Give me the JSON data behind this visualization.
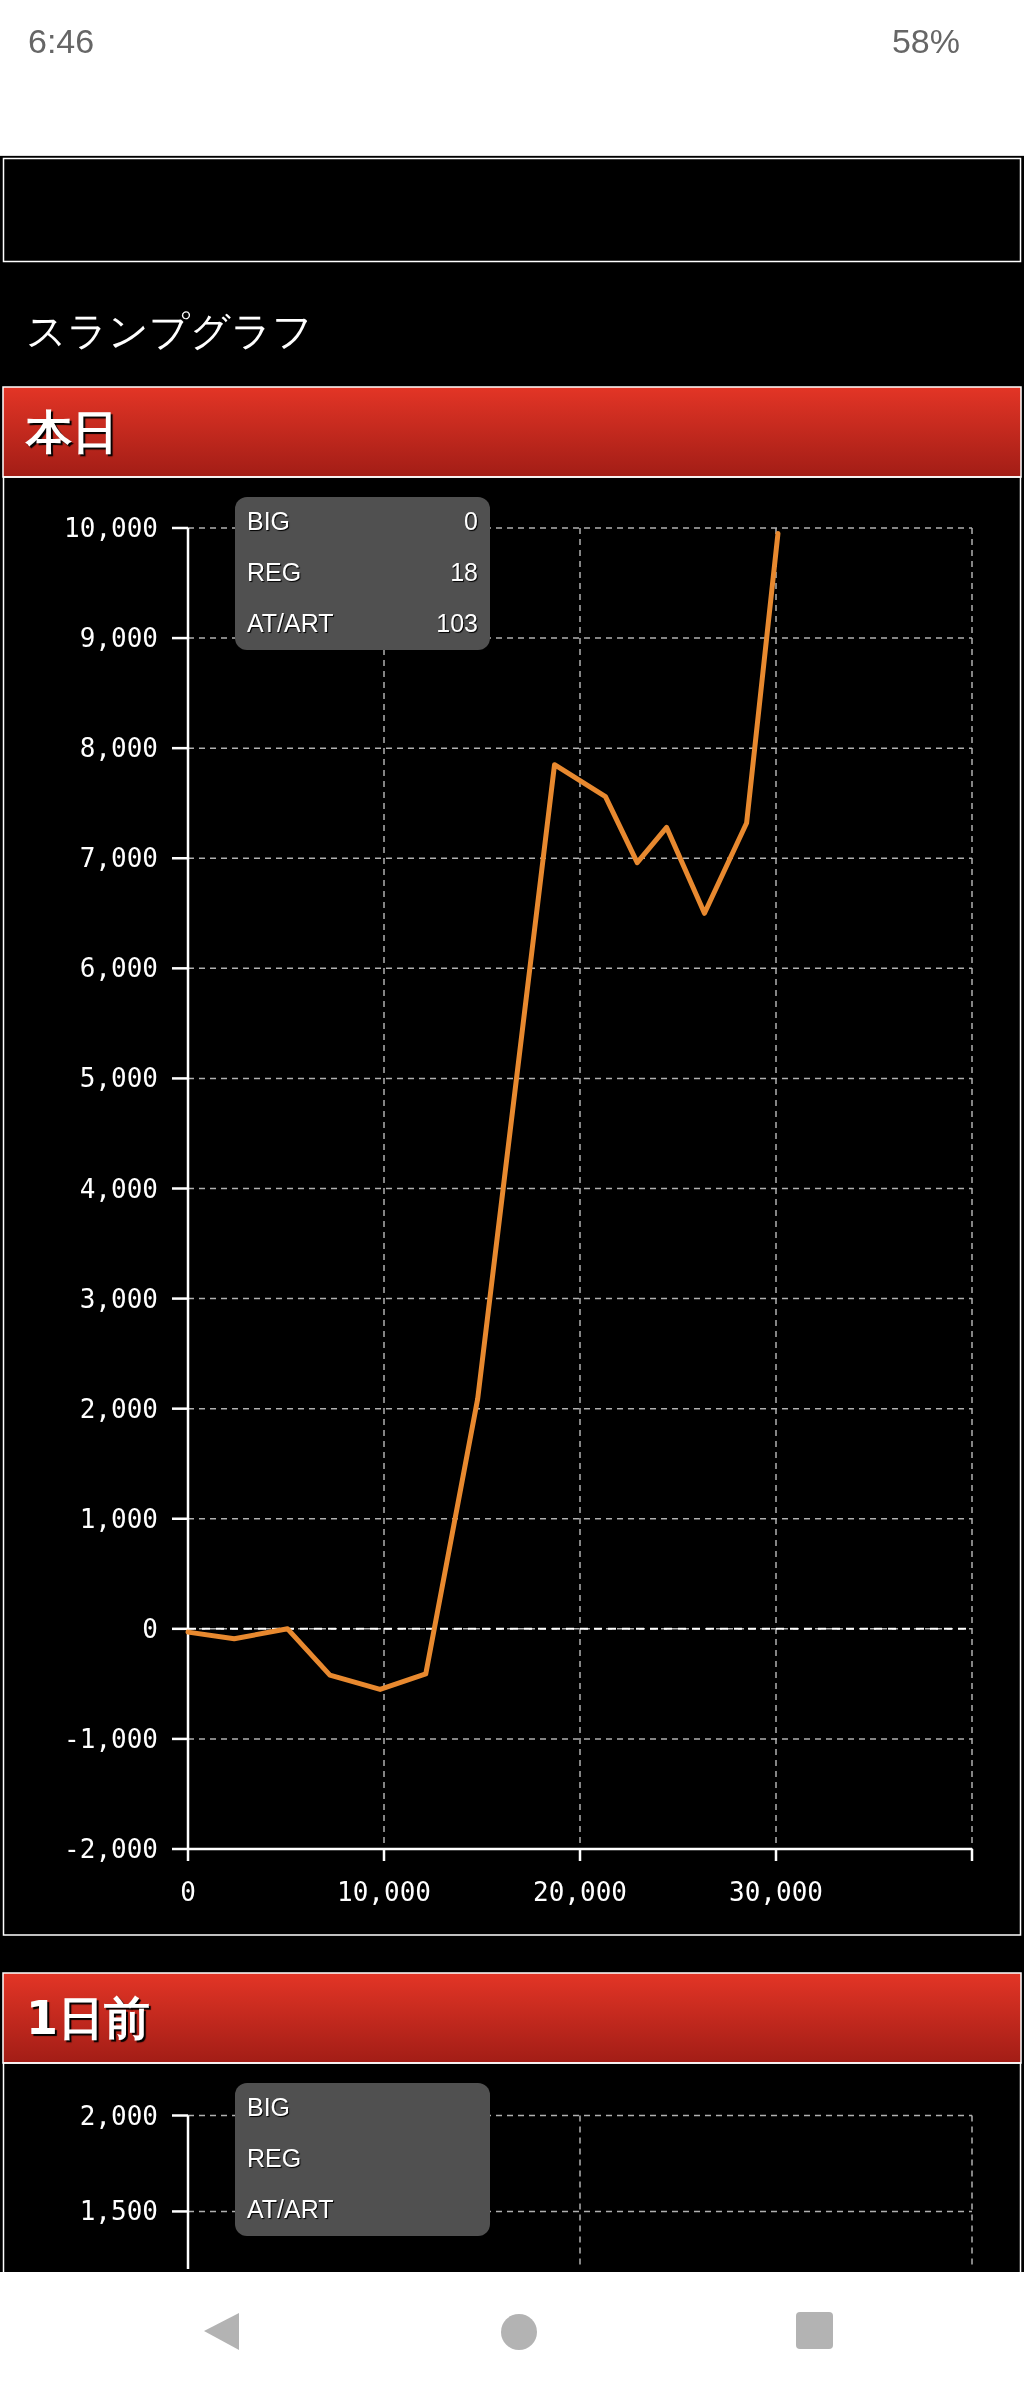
{
  "chart_data": [
    {
      "type": "other",
      "annotations": [
        "6:46",
        "58%",
        "スランプグラフ"
      ]
    },
    {
      "type": "line",
      "title": "本日",
      "xlim": [
        0,
        40000
      ],
      "ylim": [
        -2000,
        10000
      ],
      "xticks": [
        0,
        {
          "value": 10000,
          "label": "10,000"
        },
        {
          "value": 20000,
          "label": "20,000"
        },
        {
          "value": 30000,
          "label": "30,000"
        },
        {
          "value": 40000,
          "label": null
        }
      ],
      "yticks": [
        {
          "value": -2000,
          "label": "-2,000"
        },
        {
          "value": -1000,
          "label": "-1,000"
        },
        0,
        {
          "value": 1000,
          "label": "1,000"
        },
        {
          "value": 2000,
          "label": "2,000"
        },
        {
          "value": 3000,
          "label": "3,000"
        },
        {
          "value": 4000,
          "label": "4,000"
        },
        {
          "value": 5000,
          "label": "5,000"
        },
        {
          "value": 6000,
          "label": "6,000"
        },
        {
          "value": 7000,
          "label": "7,000"
        },
        {
          "value": 8000,
          "label": "8,000"
        },
        {
          "value": 9000,
          "label": "9,000"
        },
        {
          "value": 10000,
          "label": "10,000"
        }
      ],
      "grid": true,
      "marker": "none",
      "line_style": "solid",
      "ref_lines": [
        {
          "axis": "y",
          "value": 0,
          "label": null,
          "color": "#ffffff",
          "line_style": "dashed"
        }
      ],
      "series": [
        {
          "color": "#e8892f",
          "x": [
            0,
            2360,
            5080,
            7240,
            9800,
            12130,
            14780,
            18700,
            21300,
            22920,
            24420,
            26350,
            28500,
            30100
          ],
          "values": [
            -30,
            -90,
            0,
            -420,
            -550,
            -410,
            2090,
            7850,
            7560,
            6960,
            7280,
            6500,
            7320,
            9950
          ]
        }
      ],
      "annotations": [
        "BIG",
        "REG",
        "AT/ART",
        "0",
        "18",
        "103"
      ]
    },
    {
      "type": "line",
      "title": "1日前",
      "xlim": [
        0,
        40000
      ],
      "ylim": [
        1200,
        2000
      ],
      "xticks": [
        {
          "value": 20000,
          "label": null
        },
        {
          "value": 40000,
          "label": null
        }
      ],
      "yticks": [
        {
          "value": 1500,
          "label": "1,500"
        },
        {
          "value": 2000,
          "label": "2,000"
        }
      ],
      "grid": true,
      "tick_labels": "y",
      "annotations": [
        "BIG",
        "REG",
        "AT/ART"
      ]
    }
  ]
}
